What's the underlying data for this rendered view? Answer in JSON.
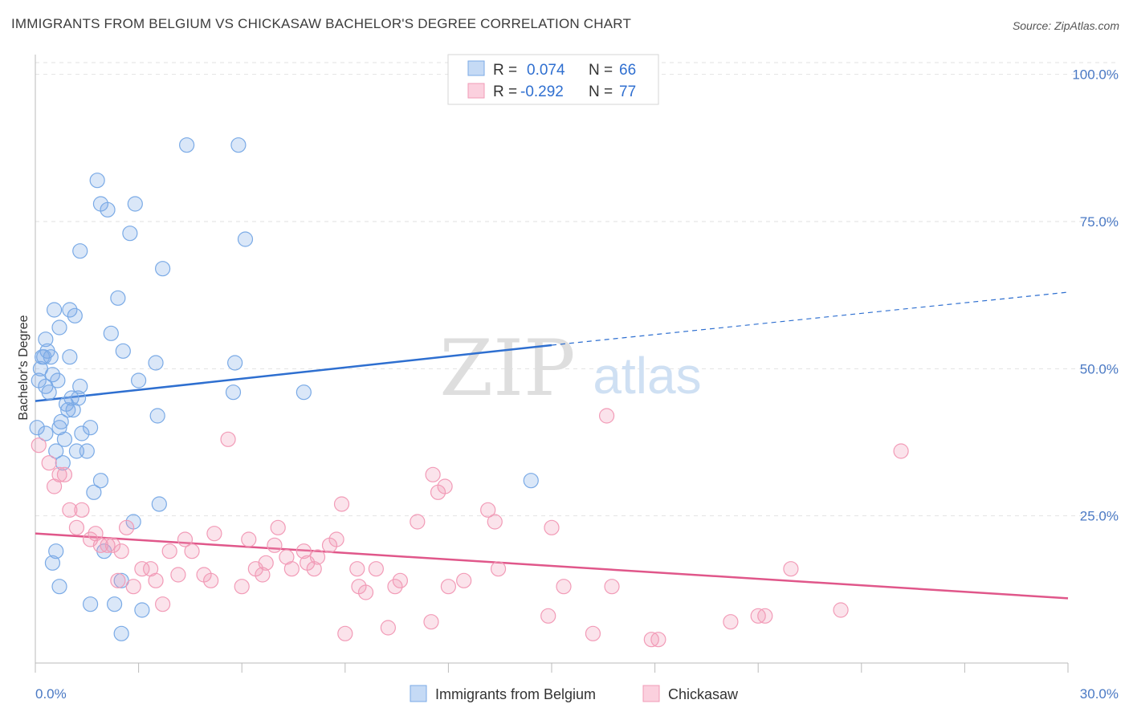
{
  "title": "IMMIGRANTS FROM BELGIUM VS CHICKASAW BACHELOR'S DEGREE CORRELATION CHART",
  "source": "Source: ZipAtlas.com",
  "watermark": {
    "zip": "ZIP",
    "atlas": "atlas"
  },
  "chart_data": {
    "type": "scatter",
    "ylabel": "Bachelor's Degree",
    "xlim": [
      0,
      30
    ],
    "ylim": [
      0,
      102
    ],
    "x_tick_labels": [
      "0.0%",
      "30.0%"
    ],
    "y_ticks": [
      25,
      50,
      75,
      100
    ],
    "y_tick_labels": [
      "25.0%",
      "50.0%",
      "75.0%",
      "100.0%"
    ],
    "grid": true,
    "legend": {
      "placement": "top-center",
      "entries": [
        {
          "r_label": "R =",
          "r_value": "0.074",
          "n_label": "N =",
          "n_value": "66"
        },
        {
          "r_label": "R =",
          "r_value": "-0.292",
          "n_label": "N =",
          "n_value": "77"
        }
      ]
    },
    "series": [
      {
        "name": "Immigrants from Belgium",
        "color": "#7aaae6",
        "line_color": "#2e6fd0",
        "trend": {
          "x0": 0,
          "y0": 44.5,
          "x1": 15,
          "y1": 54,
          "dash_to_x": 30,
          "dash_to_y": 63
        },
        "points": [
          [
            0.05,
            40
          ],
          [
            0.1,
            48
          ],
          [
            0.15,
            50
          ],
          [
            0.2,
            52
          ],
          [
            0.25,
            52
          ],
          [
            0.3,
            55
          ],
          [
            0.3,
            47
          ],
          [
            0.35,
            53
          ],
          [
            0.4,
            46
          ],
          [
            0.45,
            52
          ],
          [
            0.5,
            49
          ],
          [
            0.55,
            60
          ],
          [
            0.6,
            36
          ],
          [
            0.65,
            48
          ],
          [
            0.7,
            57
          ],
          [
            0.7,
            40
          ],
          [
            0.75,
            41
          ],
          [
            0.8,
            34
          ],
          [
            0.85,
            38
          ],
          [
            0.9,
            44
          ],
          [
            0.95,
            43
          ],
          [
            1.0,
            52
          ],
          [
            1.0,
            60
          ],
          [
            1.05,
            45
          ],
          [
            1.1,
            43
          ],
          [
            1.15,
            59
          ],
          [
            1.2,
            36
          ],
          [
            1.25,
            45
          ],
          [
            1.3,
            47
          ],
          [
            1.35,
            39
          ],
          [
            1.5,
            36
          ],
          [
            1.6,
            40
          ],
          [
            1.7,
            29
          ],
          [
            1.8,
            82
          ],
          [
            1.9,
            31
          ],
          [
            1.9,
            78
          ],
          [
            2.1,
            77
          ],
          [
            2.4,
            62
          ],
          [
            2.55,
            53
          ],
          [
            2.75,
            73
          ],
          [
            2.9,
            78
          ],
          [
            3.0,
            48
          ],
          [
            3.5,
            51
          ],
          [
            3.55,
            42
          ],
          [
            3.6,
            27
          ],
          [
            3.7,
            67
          ],
          [
            4.4,
            88
          ],
          [
            5.75,
            46
          ],
          [
            5.8,
            51
          ],
          [
            5.9,
            88
          ],
          [
            6.1,
            72
          ],
          [
            7.8,
            46
          ],
          [
            14.4,
            31
          ],
          [
            0.5,
            17
          ],
          [
            0.6,
            19
          ],
          [
            0.7,
            13
          ],
          [
            1.6,
            10
          ],
          [
            2.0,
            19
          ],
          [
            2.3,
            10
          ],
          [
            2.5,
            5
          ],
          [
            2.5,
            14
          ],
          [
            2.85,
            24
          ],
          [
            3.1,
            9
          ],
          [
            1.3,
            70
          ],
          [
            2.2,
            56
          ],
          [
            0.3,
            39
          ]
        ]
      },
      {
        "name": "Chickasaw",
        "color": "#f29bb7",
        "line_color": "#e0578a",
        "trend": {
          "x0": 0,
          "y0": 22,
          "x1": 30,
          "y1": 11
        },
        "points": [
          [
            0.1,
            37
          ],
          [
            0.4,
            34
          ],
          [
            0.55,
            30
          ],
          [
            0.7,
            32
          ],
          [
            0.85,
            32
          ],
          [
            1.0,
            26
          ],
          [
            1.2,
            23
          ],
          [
            1.35,
            26
          ],
          [
            1.6,
            21
          ],
          [
            1.75,
            22
          ],
          [
            1.9,
            20
          ],
          [
            2.1,
            20
          ],
          [
            2.25,
            20
          ],
          [
            2.4,
            14
          ],
          [
            2.5,
            19
          ],
          [
            2.65,
            23
          ],
          [
            2.85,
            13
          ],
          [
            3.1,
            16
          ],
          [
            3.35,
            16
          ],
          [
            3.5,
            14
          ],
          [
            3.7,
            10
          ],
          [
            3.9,
            19
          ],
          [
            4.15,
            15
          ],
          [
            4.35,
            21
          ],
          [
            4.55,
            19
          ],
          [
            4.9,
            15
          ],
          [
            5.1,
            14
          ],
          [
            5.2,
            22
          ],
          [
            5.6,
            38
          ],
          [
            6.0,
            13
          ],
          [
            6.2,
            21
          ],
          [
            6.4,
            16
          ],
          [
            6.6,
            15
          ],
          [
            6.7,
            17
          ],
          [
            6.95,
            20
          ],
          [
            7.05,
            23
          ],
          [
            7.3,
            18
          ],
          [
            7.45,
            16
          ],
          [
            7.8,
            19
          ],
          [
            7.9,
            17
          ],
          [
            8.1,
            16
          ],
          [
            8.2,
            18
          ],
          [
            8.55,
            20
          ],
          [
            8.75,
            21
          ],
          [
            8.9,
            27
          ],
          [
            9.0,
            5
          ],
          [
            9.35,
            16
          ],
          [
            9.6,
            12
          ],
          [
            9.9,
            16
          ],
          [
            10.25,
            6
          ],
          [
            10.45,
            13
          ],
          [
            10.6,
            14
          ],
          [
            11.1,
            24
          ],
          [
            11.5,
            7
          ],
          [
            11.55,
            32
          ],
          [
            11.7,
            29
          ],
          [
            11.9,
            30
          ],
          [
            12.0,
            13
          ],
          [
            12.45,
            14
          ],
          [
            13.15,
            26
          ],
          [
            13.35,
            24
          ],
          [
            13.45,
            16
          ],
          [
            14.9,
            8
          ],
          [
            15.0,
            23
          ],
          [
            15.35,
            13
          ],
          [
            16.2,
            5
          ],
          [
            16.6,
            42
          ],
          [
            16.75,
            13
          ],
          [
            17.9,
            4
          ],
          [
            18.1,
            4
          ],
          [
            20.2,
            7
          ],
          [
            21.0,
            8
          ],
          [
            21.2,
            8
          ],
          [
            21.95,
            16
          ],
          [
            23.4,
            9
          ],
          [
            25.15,
            36
          ],
          [
            9.4,
            13
          ]
        ]
      }
    ]
  }
}
